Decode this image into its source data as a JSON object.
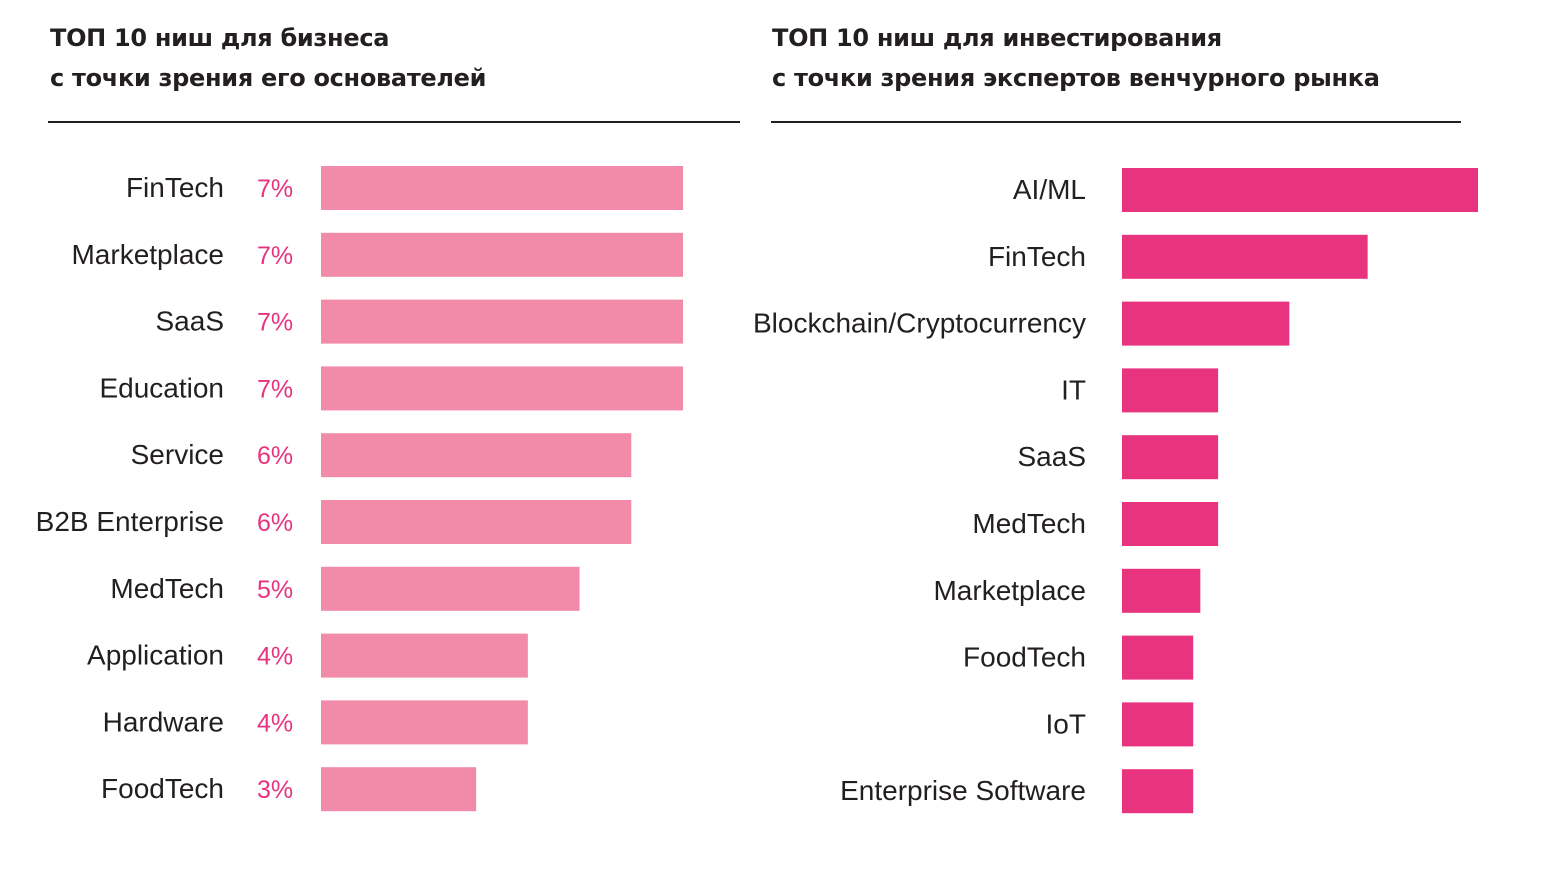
{
  "chart_data": [
    {
      "type": "bar",
      "orientation": "horizontal",
      "title": "ТОП 10 ниш для бизнеса",
      "subtitle": "с точки зрения его основателей",
      "categories": [
        "FinTech",
        "Marketplace",
        "SaaS",
        "Education",
        "Service",
        "B2B Enterprise",
        "MedTech",
        "Application",
        "Hardware",
        "FoodTech"
      ],
      "values": [
        7,
        7,
        7,
        7,
        6,
        6,
        5,
        4,
        4,
        3
      ],
      "value_labels": [
        "7%",
        "7%",
        "7%",
        "7%",
        "6%",
        "6%",
        "5%",
        "4%",
        "4%",
        "3%"
      ],
      "unit": "%",
      "xlim": [
        0,
        7
      ],
      "bar_color": "#f28aaa",
      "label_color": "#e8337f",
      "grid": false,
      "legend": "none"
    },
    {
      "type": "bar",
      "orientation": "horizontal",
      "title": "ТОП 10 ниш для инвестирования",
      "subtitle": "с точки зрения экспертов венчурного рынка",
      "categories": [
        "AI/ML",
        "FinTech",
        "Blockchain/Cryptocurrency",
        "IT",
        "SaaS",
        "MedTech",
        "Marketplace",
        "FoodTech",
        "IoT",
        "Enterprise Software"
      ],
      "values": [
        100,
        69,
        47,
        27,
        27,
        27,
        22,
        20,
        20,
        20
      ],
      "unit": "relative",
      "xlim": [
        0,
        100
      ],
      "bar_color": "#e8337f",
      "grid": false,
      "legend": "none"
    }
  ]
}
